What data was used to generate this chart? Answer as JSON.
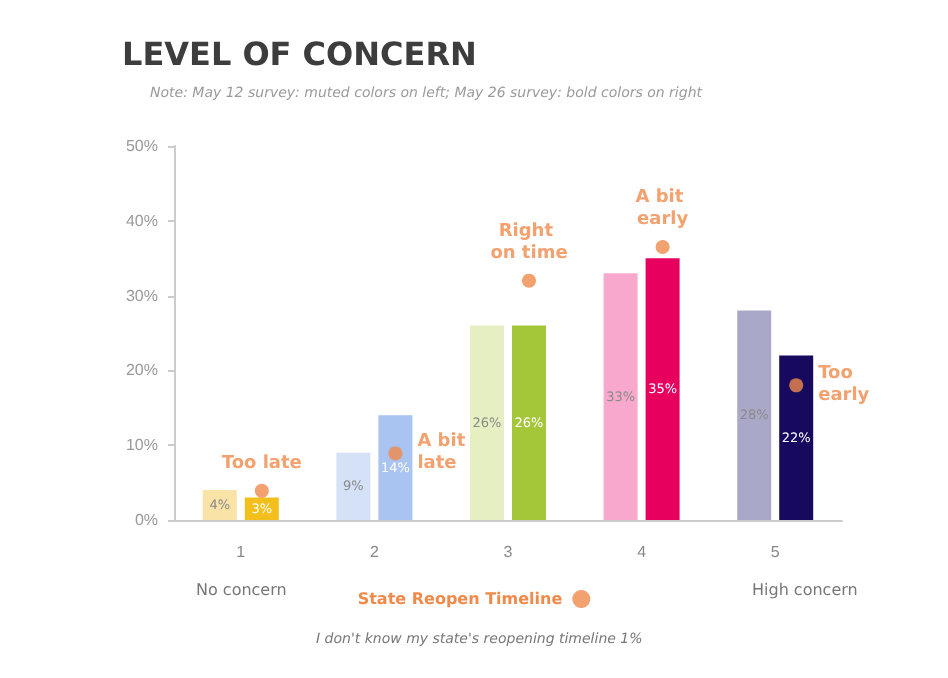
{
  "chart_data": {
    "type": "bar",
    "title": "LEVEL OF CONCERN",
    "subtitle": "Note: May 12 survey: muted colors on left; May 26 survey: bold colors on right",
    "categories": [
      "1",
      "2",
      "3",
      "4",
      "5"
    ],
    "series": [
      {
        "colors": [
          "#f9e3a6",
          "#d5e1f7",
          "#e5efc1",
          "#f7a8cc",
          "#aaa8c9"
        ],
        "values": [
          4,
          9,
          26,
          33,
          28
        ],
        "value_labels": [
          "4%",
          "9%",
          "26%",
          "33%",
          "28%"
        ]
      },
      {
        "colors": [
          "#f2bf1d",
          "#a9c4f0",
          "#a4c639",
          "#e8005f",
          "#170a5e"
        ],
        "values": [
          3,
          14,
          26,
          35,
          22
        ],
        "value_labels": [
          "3%",
          "14%",
          "26%",
          "35%",
          "22%"
        ]
      },
      {
        "type": "scatter",
        "name": "State Reopen Timeline",
        "color": "#f08a4b",
        "x": [
          "1",
          "2",
          "3",
          "4",
          "5"
        ],
        "values": [
          3.9,
          8.9,
          32,
          36.5,
          18
        ]
      }
    ],
    "ylim": [
      0,
      50
    ],
    "yticks": [
      {
        "value": 0,
        "label": "0%"
      },
      {
        "value": 10,
        "label": "10%"
      },
      {
        "value": 20,
        "label": "20%"
      },
      {
        "value": 30,
        "label": "30%"
      },
      {
        "value": 40,
        "label": "40%"
      },
      {
        "value": 50,
        "label": "50%"
      }
    ],
    "grid": false,
    "legend": "bottom",
    "marker": "circle",
    "annotations": [
      "Too late",
      "A bit late",
      "Right on time",
      "A bit early",
      "Too early",
      "No concern",
      "High concern",
      "I don't know my state's reopening timeline 1%"
    ]
  }
}
